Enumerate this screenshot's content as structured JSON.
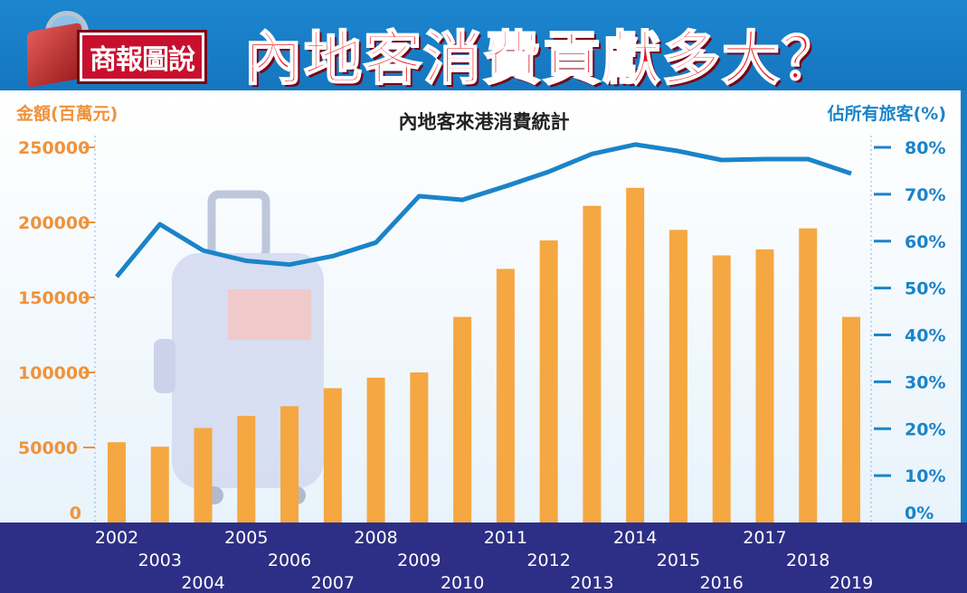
{
  "header": {
    "badge": "商報圖說",
    "headline": "內地客消費貢獻多大？"
  },
  "chart_data": {
    "type": "bar+line",
    "title": "內地客來港消費統計",
    "ylabel_left": "金額(百萬元)",
    "ylabel_right": "佔所有旅客(%)",
    "categories": [
      "2002",
      "2003",
      "2004",
      "2005",
      "2006",
      "2007",
      "2008",
      "2009",
      "2010",
      "2011",
      "2012",
      "2013",
      "2014",
      "2015",
      "2016",
      "2017",
      "2018",
      "2019"
    ],
    "series": [
      {
        "type": "bar",
        "axis": "left",
        "values": [
          53500,
          50500,
          63000,
          71000,
          77500,
          89500,
          96500,
          100000,
          137000,
          169000,
          188000,
          211000,
          223000,
          195000,
          178000,
          182000,
          196000,
          137000
        ]
      },
      {
        "type": "line",
        "axis": "right",
        "values": [
          52.4,
          63.6,
          58,
          55.8,
          55,
          56.8,
          59.7,
          69.6,
          68.8,
          71.7,
          74.8,
          78.6,
          80.6,
          79.2,
          77.3,
          77.5,
          77.5,
          74.4
        ]
      }
    ],
    "ylim_left": [
      0,
      250000
    ],
    "yticks_left": [
      "0",
      "50000",
      "100000",
      "150000",
      "200000",
      "250000"
    ],
    "ylim_right": [
      0,
      80
    ],
    "yticks_right": [
      "0%",
      "10%",
      "20%",
      "30%",
      "40%",
      "50%",
      "60%",
      "70%",
      "80%"
    ],
    "colors": {
      "bar": "#f5a742",
      "line": "#1a84c8",
      "footer": "#2d2f86",
      "header": "#1c86cf"
    }
  }
}
